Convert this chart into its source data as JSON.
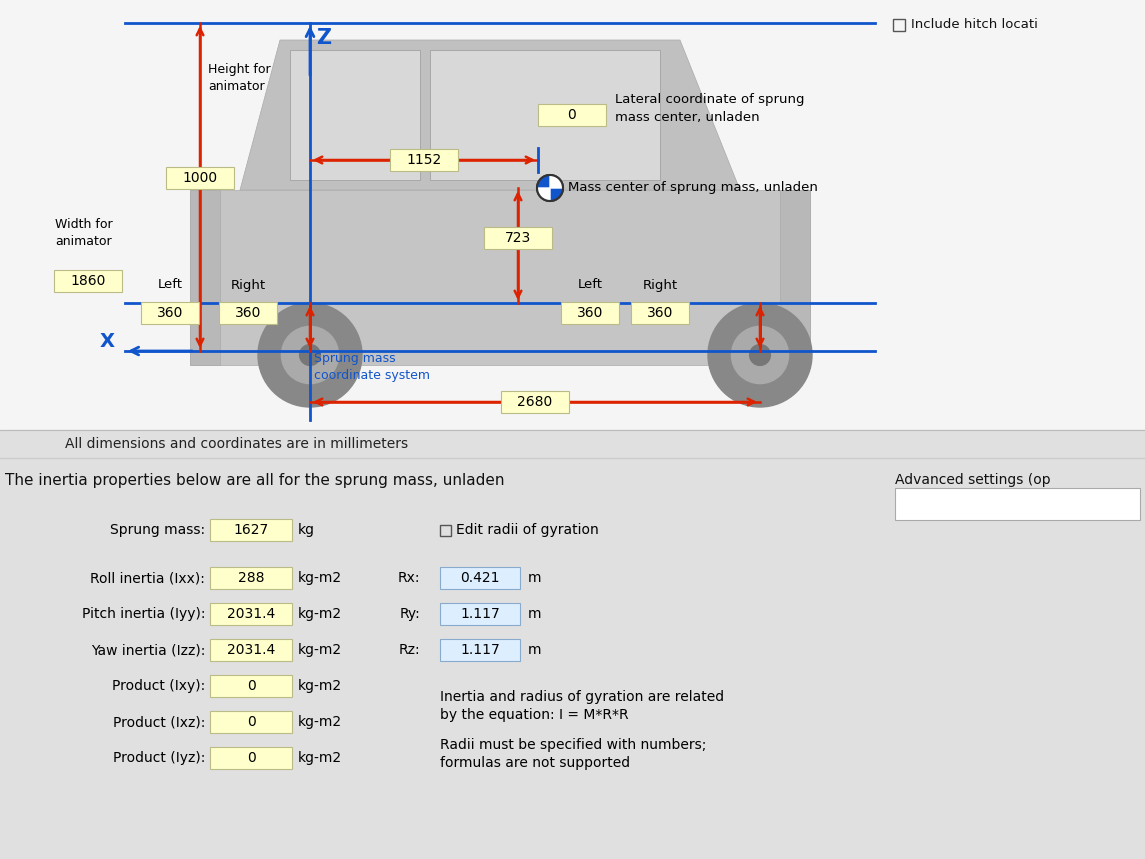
{
  "bg_top": "#f5f5f5",
  "bg_bottom": "#e0e0e0",
  "yellow_box": "#ffffcc",
  "blue_box": "#ddeeff",
  "red_col": "#dd2200",
  "blue_col": "#1155cc",
  "diagram": {
    "note": "All dimensions and coordinates are in millimeters",
    "height_anim_label": "Height for\nanimator",
    "width_anim_label": "Width for\nanimator",
    "height_anim_val": "1000",
    "width_anim_val": "1860",
    "lateral_val": "0",
    "lateral_label": "Lateral coordinate of sprung\nmass center, unladen",
    "long_val": "1152",
    "vert_val": "723",
    "wheelbase_val": "2680",
    "left_label": "Left",
    "right_label": "Right",
    "front_left": "360",
    "front_right": "360",
    "rear_left": "360",
    "rear_right": "360",
    "z_label": "Z",
    "x_label": "X",
    "sprung_coord_label": "Sprung mass\ncoordinate system",
    "mass_center_label": "Mass center of sprung mass, unladen",
    "include_hitch": "Include hitch locati"
  },
  "inertia": {
    "header": "The inertia properties below are all for the sprung mass, unladen",
    "sprung_mass_label": "Sprung mass:",
    "sprung_mass_val": "1627",
    "sprung_mass_unit": "kg",
    "checkbox_label": "Edit radii of gyration",
    "rows": [
      {
        "label": "Roll inertia (Ixx):",
        "val": "288",
        "unit": "kg-m2",
        "rl": "Rx:",
        "rv": "0.421",
        "ru": "m"
      },
      {
        "label": "Pitch inertia (Iyy):",
        "val": "2031.4",
        "unit": "kg-m2",
        "rl": "Ry:",
        "rv": "1.117",
        "ru": "m"
      },
      {
        "label": "Yaw inertia (Izz):",
        "val": "2031.4",
        "unit": "kg-m2",
        "rl": "Rz:",
        "rv": "1.117",
        "ru": "m"
      },
      {
        "label": "Product (Ixy):",
        "val": "0",
        "unit": "kg-m2",
        "rl": "",
        "rv": "",
        "ru": ""
      },
      {
        "label": "Product (Ixz):",
        "val": "0",
        "unit": "kg-m2",
        "rl": "",
        "rv": "",
        "ru": ""
      },
      {
        "label": "Product (Iyz):",
        "val": "0",
        "unit": "kg-m2",
        "rl": "",
        "rv": "",
        "ru": ""
      }
    ],
    "note1": "Inertia and radius of gyration are related",
    "note2": "by the equation: I = M*R*R",
    "note3": "Radii must be specified with numbers;",
    "note4": "formulas are not supported",
    "advanced_label": "Advanced settings (op"
  }
}
